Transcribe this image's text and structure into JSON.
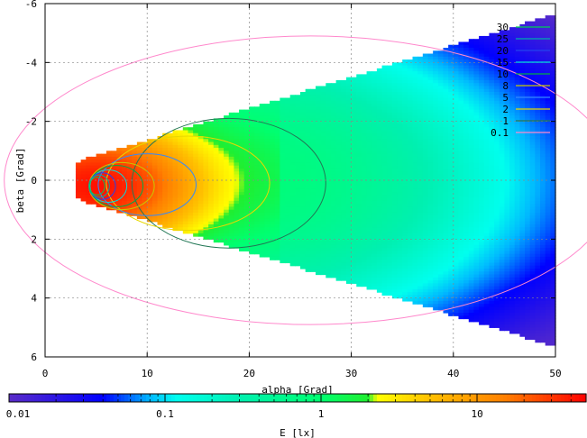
{
  "chart_data": {
    "type": "heatmap",
    "title": "",
    "xlabel": "alpha [Grad]",
    "ylabel": "beta [Grad]",
    "xlim": [
      0,
      50
    ],
    "ylim": [
      6,
      -6
    ],
    "x_ticks": [
      "0",
      "10",
      "20",
      "30",
      "40",
      "50"
    ],
    "y_ticks": [
      "-6",
      "-4",
      "-2",
      "0",
      "2",
      "4",
      "6"
    ],
    "grid": true,
    "colorbar": {
      "label": "E [lx]",
      "scale": "log",
      "range": [
        0.01,
        50
      ],
      "ticks": [
        "0.01",
        "0.1",
        "1",
        "10"
      ],
      "stops": [
        {
          "v": 0.01,
          "color": "#5a2cc8"
        },
        {
          "v": 0.04,
          "color": "#0000ff"
        },
        {
          "v": 0.08,
          "color": "#00b8ff"
        },
        {
          "v": 0.12,
          "color": "#00ffee"
        },
        {
          "v": 0.3,
          "color": "#00f0b0"
        },
        {
          "v": 1.0,
          "color": "#00ff70"
        },
        {
          "v": 2.0,
          "color": "#20ee30"
        },
        {
          "v": 2.3,
          "color": "#ffff00"
        },
        {
          "v": 5,
          "color": "#ffc000"
        },
        {
          "v": 15,
          "color": "#ff8000"
        },
        {
          "v": 50,
          "color": "#ff0000"
        }
      ]
    },
    "contour_legend": {
      "position": "top-right",
      "levels": [
        {
          "label": "30",
          "color": "#00cc55"
        },
        {
          "label": "25",
          "color": "#00aaaa"
        },
        {
          "label": "20",
          "color": "#2244ee"
        },
        {
          "label": "15",
          "color": "#00dddd"
        },
        {
          "label": "10",
          "color": "#00aa44"
        },
        {
          "label": "8",
          "color": "#c8c800"
        },
        {
          "label": "5",
          "color": "#3388ff"
        },
        {
          "label": "2",
          "color": "#e8d800"
        },
        {
          "label": "1",
          "color": "#227755"
        },
        {
          "label": "0.1",
          "color": "#ff88cc"
        }
      ]
    },
    "field": {
      "peak_alpha": 5,
      "peak_beta": 0.2,
      "peak_E": 40,
      "x_start": 3,
      "cutoff_alpha": 22
    }
  }
}
